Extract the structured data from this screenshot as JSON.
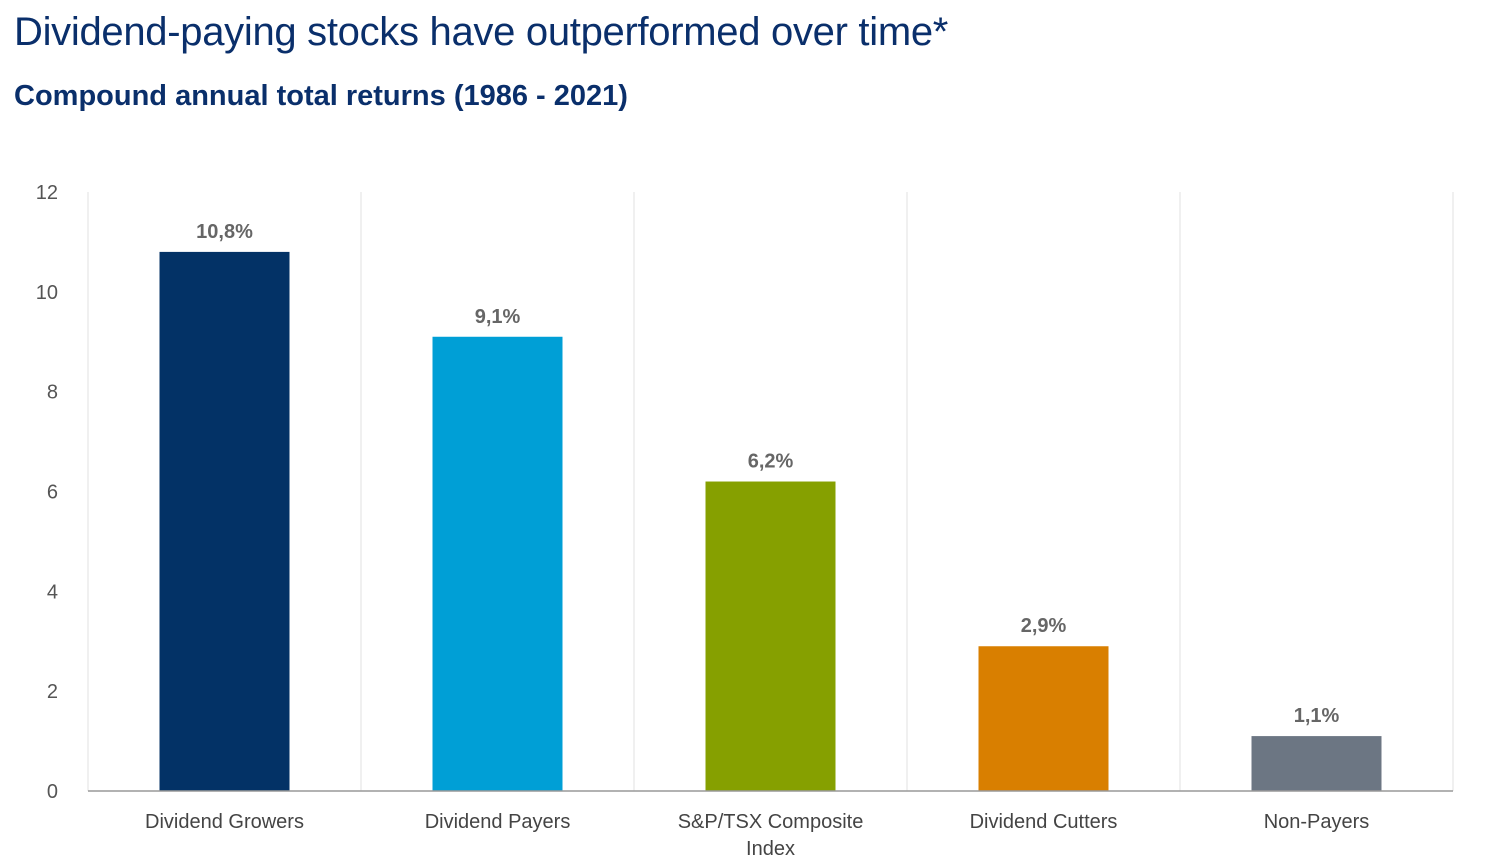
{
  "header": {
    "title": "Dividend-paying stocks have outperformed over time*",
    "subtitle": "Compound annual total returns (1986 - 2021)"
  },
  "chart_data": {
    "type": "bar",
    "categories": [
      [
        "Dividend Growers"
      ],
      [
        "Dividend Payers"
      ],
      [
        "S&P/TSX Composite",
        "Index"
      ],
      [
        "Dividend Cutters"
      ],
      [
        "Non-Payers"
      ]
    ],
    "values": [
      10.8,
      9.1,
      6.2,
      2.9,
      1.1
    ],
    "data_labels": [
      "10,8%",
      "9,1%",
      "6,2%",
      "2,9%",
      "1,1%"
    ],
    "colors": [
      "#033266",
      "#009fd6",
      "#86a000",
      "#d97f00",
      "#6c7683"
    ],
    "y_ticks": [
      "0",
      "2",
      "4",
      "6",
      "8",
      "10",
      "12"
    ],
    "ylim": [
      0,
      12
    ],
    "grid": "vertical-separators",
    "legend": "none"
  }
}
